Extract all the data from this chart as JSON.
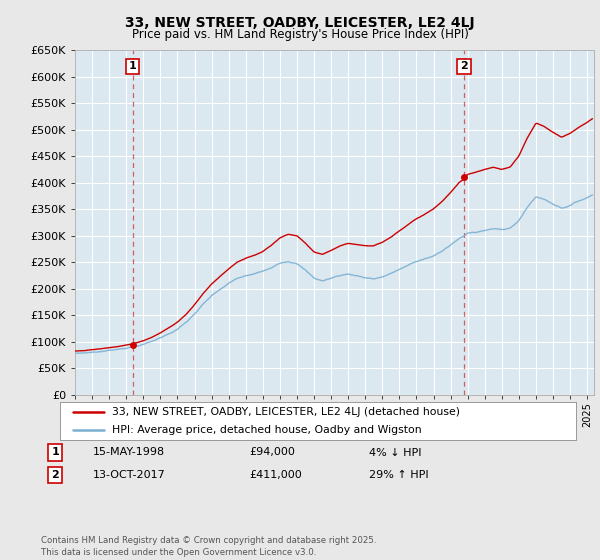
{
  "title": "33, NEW STREET, OADBY, LEICESTER, LE2 4LJ",
  "subtitle": "Price paid vs. HM Land Registry's House Price Index (HPI)",
  "legend_line1": "33, NEW STREET, OADBY, LEICESTER, LE2 4LJ (detached house)",
  "legend_line2": "HPI: Average price, detached house, Oadby and Wigston",
  "annotation1": {
    "num": "1",
    "date": "15-MAY-1998",
    "price": "£94,000",
    "pct": "4% ↓ HPI"
  },
  "annotation2": {
    "num": "2",
    "date": "13-OCT-2017",
    "price": "£411,000",
    "pct": "29% ↑ HPI"
  },
  "copyright": "Contains HM Land Registry data © Crown copyright and database right 2025.\nThis data is licensed under the Open Government Licence v3.0.",
  "ylim": [
    0,
    650000
  ],
  "yticks": [
    0,
    50000,
    100000,
    150000,
    200000,
    250000,
    300000,
    350000,
    400000,
    450000,
    500000,
    550000,
    600000,
    650000
  ],
  "sale1_x": 1998.37,
  "sale1_y": 94000,
  "sale2_x": 2017.79,
  "sale2_y": 411000,
  "bg_color": "#e8e8e8",
  "plot_bg_color": "#dce8f0",
  "red_color": "#cc0000",
  "blue_color": "#7ab0d4",
  "grid_color": "#ffffff",
  "spine_color": "#aaaaaa",
  "xmin": 1995.0,
  "xmax": 2025.4
}
